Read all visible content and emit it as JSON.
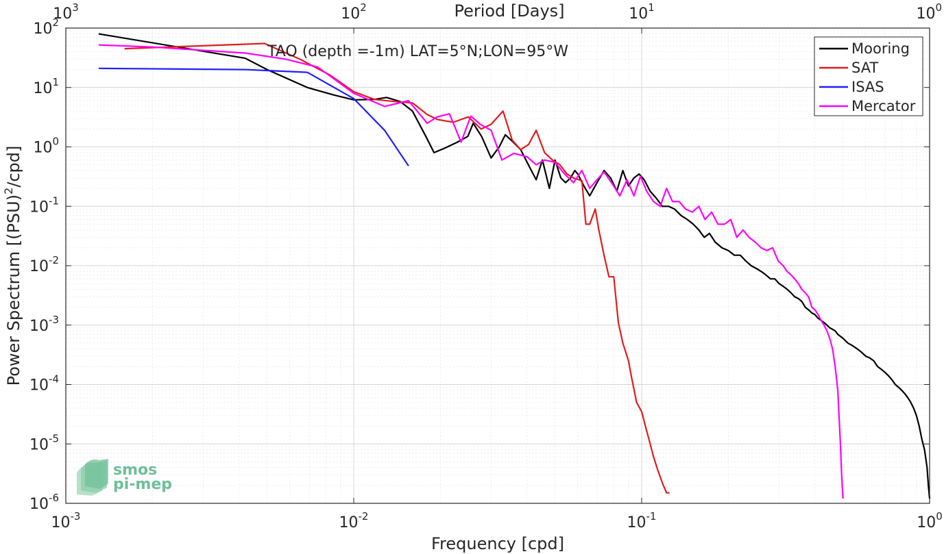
{
  "chart_data": {
    "type": "line",
    "title": "TAO (depth =-1m) LAT=5°N;LON=95°W",
    "xlabel": "Frequency [cpd]",
    "ylabel_main": "Power Spectrum [(PSU)",
    "ylabel_sup": "2",
    "ylabel_tail": "/cpd]",
    "x2label": "Period [Days]",
    "xscale": "log",
    "yscale": "log",
    "xlim": [
      0.001,
      1
    ],
    "ylim": [
      1e-06,
      100
    ],
    "grid": true,
    "legend_position": "top-right",
    "x_ticks": [
      {
        "value": 0.001,
        "base": "10",
        "exp": "-3"
      },
      {
        "value": 0.01,
        "base": "10",
        "exp": "-2"
      },
      {
        "value": 0.1,
        "base": "10",
        "exp": "-1"
      },
      {
        "value": 1,
        "base": "10",
        "exp": "0"
      }
    ],
    "y_ticks": [
      {
        "value": 1e-06,
        "base": "10",
        "exp": "-6"
      },
      {
        "value": 1e-05,
        "base": "10",
        "exp": "-5"
      },
      {
        "value": 0.0001,
        "base": "10",
        "exp": "-4"
      },
      {
        "value": 0.001,
        "base": "10",
        "exp": "-3"
      },
      {
        "value": 0.01,
        "base": "10",
        "exp": "-2"
      },
      {
        "value": 0.1,
        "base": "10",
        "exp": "-1"
      },
      {
        "value": 1,
        "base": "10",
        "exp": "0"
      },
      {
        "value": 10,
        "base": "10",
        "exp": "1"
      },
      {
        "value": 100,
        "base": "10",
        "exp": "2"
      }
    ],
    "period_ticks": [
      {
        "value": 1000,
        "base": "10",
        "exp": "3"
      },
      {
        "value": 100,
        "base": "10",
        "exp": "2"
      },
      {
        "value": 10,
        "base": "10",
        "exp": "1"
      },
      {
        "value": 1,
        "base": "10",
        "exp": "0"
      }
    ],
    "series": [
      {
        "name": "Mooring",
        "color": "#000000",
        "x": [
          0.0013,
          0.0042,
          0.005,
          0.0069,
          0.0085,
          0.01,
          0.0118,
          0.013,
          0.0145,
          0.016,
          0.0178,
          0.019,
          0.0207,
          0.0229,
          0.0249,
          0.026,
          0.0278,
          0.03,
          0.032,
          0.0336,
          0.0358,
          0.038,
          0.04,
          0.043,
          0.0452,
          0.0478,
          0.05,
          0.0524,
          0.0544,
          0.0566,
          0.0586,
          0.06,
          0.063,
          0.066,
          0.07,
          0.074,
          0.078,
          0.082,
          0.086,
          0.09,
          0.094,
          0.098,
          0.102,
          0.107,
          0.112,
          0.118,
          0.124,
          0.13,
          0.137,
          0.144,
          0.151,
          0.158,
          0.165,
          0.172,
          0.18,
          0.19,
          0.2,
          0.21,
          0.22,
          0.23,
          0.24,
          0.25,
          0.26,
          0.27,
          0.28,
          0.29,
          0.3,
          0.31,
          0.32,
          0.33,
          0.34,
          0.35,
          0.36,
          0.37,
          0.38,
          0.39,
          0.4,
          0.41,
          0.42,
          0.43,
          0.44,
          0.45,
          0.46,
          0.47,
          0.48,
          0.5,
          0.52,
          0.54,
          0.56,
          0.58,
          0.6,
          0.62,
          0.64,
          0.66,
          0.68,
          0.7,
          0.72,
          0.74,
          0.76,
          0.78,
          0.8,
          0.82,
          0.84,
          0.86,
          0.88,
          0.9,
          0.92,
          0.94,
          0.96,
          0.98,
          0.99,
          1.0
        ],
        "y": [
          80,
          31,
          20,
          10,
          7.5,
          6.2,
          6.3,
          6.8,
          5.8,
          4,
          1.5,
          0.8,
          0.95,
          1.2,
          1.5,
          2.5,
          1.5,
          0.65,
          1.0,
          1.6,
          1.2,
          0.9,
          0.55,
          0.28,
          0.6,
          0.2,
          0.6,
          0.3,
          0.25,
          0.3,
          0.4,
          0.35,
          0.22,
          0.15,
          0.25,
          0.4,
          0.3,
          0.18,
          0.4,
          0.22,
          0.3,
          0.35,
          0.28,
          0.18,
          0.14,
          0.1,
          0.1,
          0.09,
          0.07,
          0.06,
          0.05,
          0.04,
          0.03,
          0.035,
          0.025,
          0.02,
          0.018,
          0.015,
          0.015,
          0.012,
          0.01,
          0.009,
          0.008,
          0.007,
          0.006,
          0.006,
          0.005,
          0.0045,
          0.004,
          0.0035,
          0.003,
          0.0028,
          0.0025,
          0.002,
          0.0018,
          0.0016,
          0.0015,
          0.0013,
          0.0012,
          0.0011,
          0.001,
          0.0009,
          0.00085,
          0.0008,
          0.0007,
          0.0006,
          0.0005,
          0.00045,
          0.0004,
          0.00035,
          0.0003,
          0.00028,
          0.00025,
          0.0002,
          0.00018,
          0.00016,
          0.00014,
          0.00012,
          0.0001,
          9e-05,
          8e-05,
          7e-05,
          6e-05,
          5e-05,
          4e-05,
          3e-05,
          2e-05,
          1.2e-05,
          8e-06,
          4e-06,
          2e-06,
          1.2e-06
        ]
      },
      {
        "name": "SAT",
        "color": "#e31a1c",
        "x": [
          0.0016,
          0.0049,
          0.0065,
          0.0083,
          0.01,
          0.0118,
          0.0139,
          0.016,
          0.018,
          0.0195,
          0.0222,
          0.025,
          0.0277,
          0.03,
          0.033,
          0.0355,
          0.038,
          0.0405,
          0.043,
          0.046,
          0.049,
          0.052,
          0.055,
          0.058,
          0.062,
          0.064,
          0.066,
          0.069,
          0.071,
          0.074,
          0.077,
          0.08,
          0.083,
          0.086,
          0.09,
          0.092,
          0.096,
          0.1,
          0.103,
          0.106,
          0.11,
          0.114,
          0.118,
          0.122,
          0.125
        ],
        "y": [
          45,
          55,
          30,
          16,
          8.5,
          6.3,
          5.8,
          5.5,
          3.5,
          2.9,
          2.6,
          3.2,
          2.0,
          2.4,
          4.0,
          1.3,
          0.9,
          1.1,
          1.9,
          0.8,
          0.6,
          0.5,
          0.35,
          0.3,
          0.27,
          0.05,
          0.05,
          0.09,
          0.04,
          0.015,
          0.0065,
          0.0065,
          0.0011,
          0.0005,
          0.00025,
          0.00014,
          5e-05,
          3.5e-05,
          2e-05,
          1.2e-05,
          6e-06,
          3.5e-06,
          2.2e-06,
          1.5e-06,
          1.5e-06
        ]
      },
      {
        "name": "ISAS",
        "color": "#1f1fff",
        "x": [
          0.0013,
          0.0042,
          0.0069,
          0.01,
          0.0128,
          0.0155
        ],
        "y": [
          21,
          20,
          18,
          6.5,
          1.9,
          0.48
        ]
      },
      {
        "name": "Mercator",
        "color": "#ff00ff",
        "x": [
          0.0013,
          0.002,
          0.0042,
          0.0058,
          0.0075,
          0.01,
          0.0128,
          0.0155,
          0.018,
          0.0195,
          0.0215,
          0.0236,
          0.0255,
          0.0275,
          0.03,
          0.0327,
          0.036,
          0.04,
          0.043,
          0.046,
          0.05,
          0.054,
          0.058,
          0.062,
          0.066,
          0.07,
          0.074,
          0.079,
          0.084,
          0.089,
          0.094,
          0.099,
          0.104,
          0.11,
          0.116,
          0.122,
          0.128,
          0.135,
          0.142,
          0.15,
          0.158,
          0.166,
          0.175,
          0.184,
          0.194,
          0.204,
          0.214,
          0.225,
          0.236,
          0.248,
          0.26,
          0.272,
          0.285,
          0.298,
          0.31,
          0.32,
          0.33,
          0.34,
          0.35,
          0.36,
          0.37,
          0.38,
          0.39,
          0.4,
          0.41,
          0.42,
          0.43,
          0.44,
          0.45,
          0.46,
          0.47,
          0.48,
          0.49,
          0.495,
          0.5
        ],
        "y": [
          52,
          48,
          38,
          30,
          22,
          8,
          4.8,
          6,
          2.5,
          3.2,
          3.6,
          1.2,
          3.3,
          2.4,
          1.9,
          0.6,
          0.78,
          0.68,
          0.5,
          0.6,
          0.55,
          0.35,
          0.25,
          0.4,
          0.2,
          0.28,
          0.38,
          0.24,
          0.15,
          0.28,
          0.15,
          0.32,
          0.18,
          0.12,
          0.1,
          0.2,
          0.12,
          0.12,
          0.09,
          0.08,
          0.1,
          0.06,
          0.08,
          0.05,
          0.05,
          0.06,
          0.03,
          0.04,
          0.03,
          0.025,
          0.02,
          0.018,
          0.02,
          0.012,
          0.01,
          0.008,
          0.007,
          0.006,
          0.005,
          0.004,
          0.0035,
          0.003,
          0.002,
          0.0018,
          0.0015,
          0.0012,
          0.001,
          0.0008,
          0.0006,
          0.0004,
          0.0002,
          8e-05,
          1e-05,
          3e-06,
          1.2e-06
        ]
      }
    ]
  },
  "logo": {
    "line1": "smos",
    "line2": "pi-mep"
  }
}
